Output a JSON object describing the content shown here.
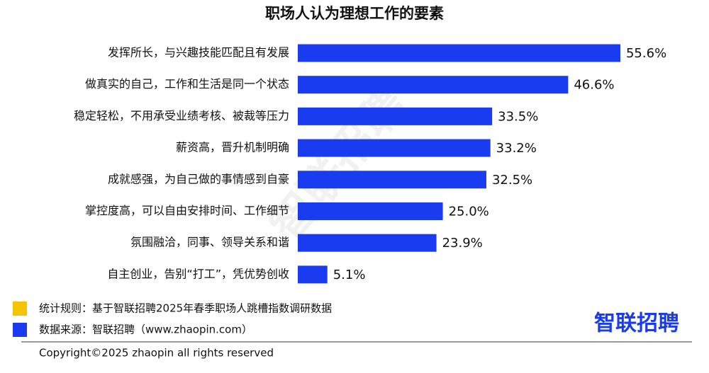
{
  "chart_data": {
    "type": "bar",
    "orientation": "horizontal",
    "title": "职场人认为理想工作的要素",
    "categories": [
      "发挥所长，与兴趣技能匹配且有发展",
      "做真实的自己，工作和生活是同一个状态",
      "稳定轻松，不用承受业绩考核、被裁等压力",
      "薪资高，晋升机制明确",
      "成就感强，为自己做的事情感到自豪",
      "掌控度高，可以自由安排时间、工作细节",
      "氛围融洽，同事、领导关系和谐",
      "自主创业，告别“打工”，凭优势创收"
    ],
    "values": [
      55.6,
      46.6,
      33.5,
      33.2,
      32.5,
      25.0,
      23.9,
      5.1
    ],
    "value_labels": [
      "55.6%",
      "46.6%",
      "33.5%",
      "33.2%",
      "32.5%",
      "25.0%",
      "23.9%",
      "5.1%"
    ],
    "color": "#1a3cf0",
    "xlim": [
      0,
      60
    ],
    "notes": [
      {
        "text": "统计规则：基于智联招聘2025年春季职场人跳槽指数调研数据",
        "color": "#f5c400"
      },
      {
        "text": "数据来源：智联招聘（www.zhaopin.com）",
        "color": "#1a3cf0"
      }
    ],
    "logo": "智联招聘",
    "watermark": "智联招聘",
    "copyright": "Copyright©2025 zhaopin all rights reserved"
  }
}
